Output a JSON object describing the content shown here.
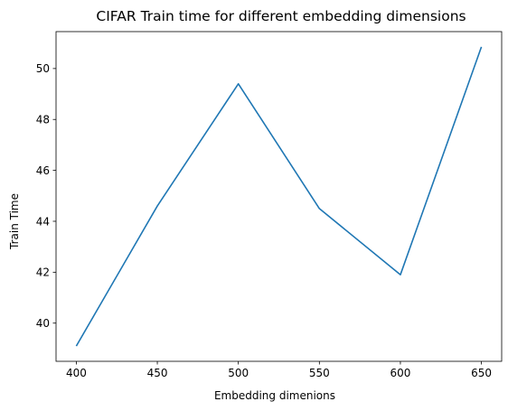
{
  "chart_data": {
    "type": "line",
    "title": "CIFAR Train time for different embedding dimensions",
    "xlabel": "Embedding dimenions",
    "ylabel": "Train Time",
    "x": [
      400,
      450,
      500,
      550,
      600,
      650
    ],
    "series": [
      {
        "values": [
          39.1,
          44.6,
          49.4,
          44.5,
          41.9,
          50.85
        ],
        "color": "#1f77b4"
      }
    ],
    "xlim": [
      387.5,
      662.5
    ],
    "ylim": [
      38.5,
      51.45
    ],
    "xticks": [
      400,
      450,
      500,
      550,
      600,
      650
    ],
    "yticks": [
      40,
      42,
      44,
      46,
      48,
      50
    ],
    "grid": false,
    "legend": "none"
  }
}
